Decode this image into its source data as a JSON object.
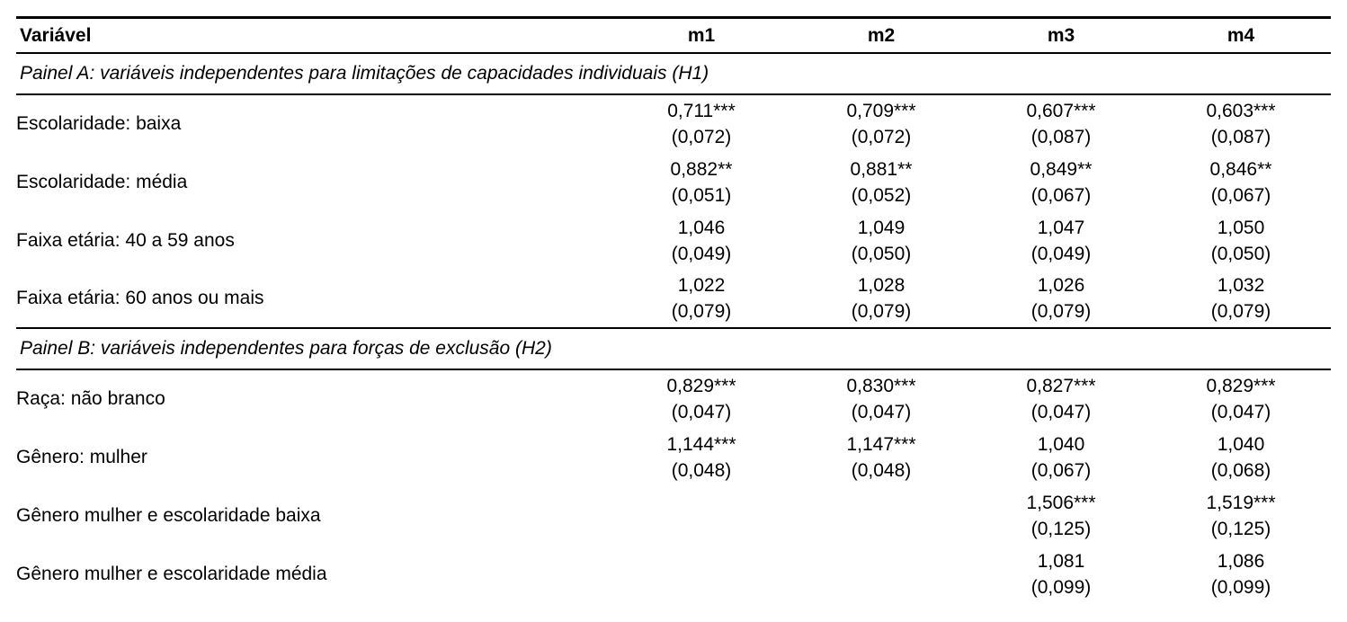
{
  "header": {
    "variable_col": "Variável",
    "model_cols": [
      "m1",
      "m2",
      "m3",
      "m4"
    ]
  },
  "panel_a": {
    "title": "Painel A: variáveis independentes para limitações de capacidades individuais (H1)",
    "rows": [
      {
        "label": "Escolaridade: baixa",
        "m1": {
          "coef": "0,711***",
          "se": "(0,072)"
        },
        "m2": {
          "coef": "0,709***",
          "se": "(0,072)"
        },
        "m3": {
          "coef": "0,607***",
          "se": "(0,087)"
        },
        "m4": {
          "coef": "0,603***",
          "se": "(0,087)"
        }
      },
      {
        "label": "Escolaridade: média",
        "m1": {
          "coef": "0,882**",
          "se": "(0,051)"
        },
        "m2": {
          "coef": "0,881**",
          "se": "(0,052)"
        },
        "m3": {
          "coef": "0,849**",
          "se": "(0,067)"
        },
        "m4": {
          "coef": "0,846**",
          "se": "(0,067)"
        }
      },
      {
        "label": "Faixa etária: 40 a 59 anos",
        "m1": {
          "coef": "1,046",
          "se": "(0,049)"
        },
        "m2": {
          "coef": "1,049",
          "se": "(0,050)"
        },
        "m3": {
          "coef": "1,047",
          "se": "(0,049)"
        },
        "m4": {
          "coef": "1,050",
          "se": "(0,050)"
        }
      },
      {
        "label": "Faixa etária: 60 anos ou mais",
        "m1": {
          "coef": "1,022",
          "se": "(0,079)"
        },
        "m2": {
          "coef": "1,028",
          "se": "(0,079)"
        },
        "m3": {
          "coef": "1,026",
          "se": "(0,079)"
        },
        "m4": {
          "coef": "1,032",
          "se": "(0,079)"
        }
      }
    ]
  },
  "panel_b": {
    "title": "Painel B: variáveis independentes para forças de exclusão (H2)",
    "rows": [
      {
        "label": "Raça: não branco",
        "m1": {
          "coef": "0,829***",
          "se": "(0,047)"
        },
        "m2": {
          "coef": "0,830***",
          "se": "(0,047)"
        },
        "m3": {
          "coef": "0,827***",
          "se": "(0,047)"
        },
        "m4": {
          "coef": "0,829***",
          "se": "(0,047)"
        }
      },
      {
        "label": "Gênero: mulher",
        "m1": {
          "coef": "1,144***",
          "se": "(0,048)"
        },
        "m2": {
          "coef": "1,147***",
          "se": "(0,048)"
        },
        "m3": {
          "coef": "1,040",
          "se": "(0,067)"
        },
        "m4": {
          "coef": "1,040",
          "se": "(0,068)"
        }
      },
      {
        "label": "Gênero mulher e escolaridade baixa",
        "m1": {
          "coef": "",
          "se": ""
        },
        "m2": {
          "coef": "",
          "se": ""
        },
        "m3": {
          "coef": "1,506***",
          "se": "(0,125)"
        },
        "m4": {
          "coef": "1,519***",
          "se": "(0,125)"
        }
      },
      {
        "label": "Gênero mulher e escolaridade média",
        "m1": {
          "coef": "",
          "se": ""
        },
        "m2": {
          "coef": "",
          "se": ""
        },
        "m3": {
          "coef": "1,081",
          "se": "(0,099)"
        },
        "m4": {
          "coef": "1,086",
          "se": "(0,099)"
        }
      }
    ]
  }
}
